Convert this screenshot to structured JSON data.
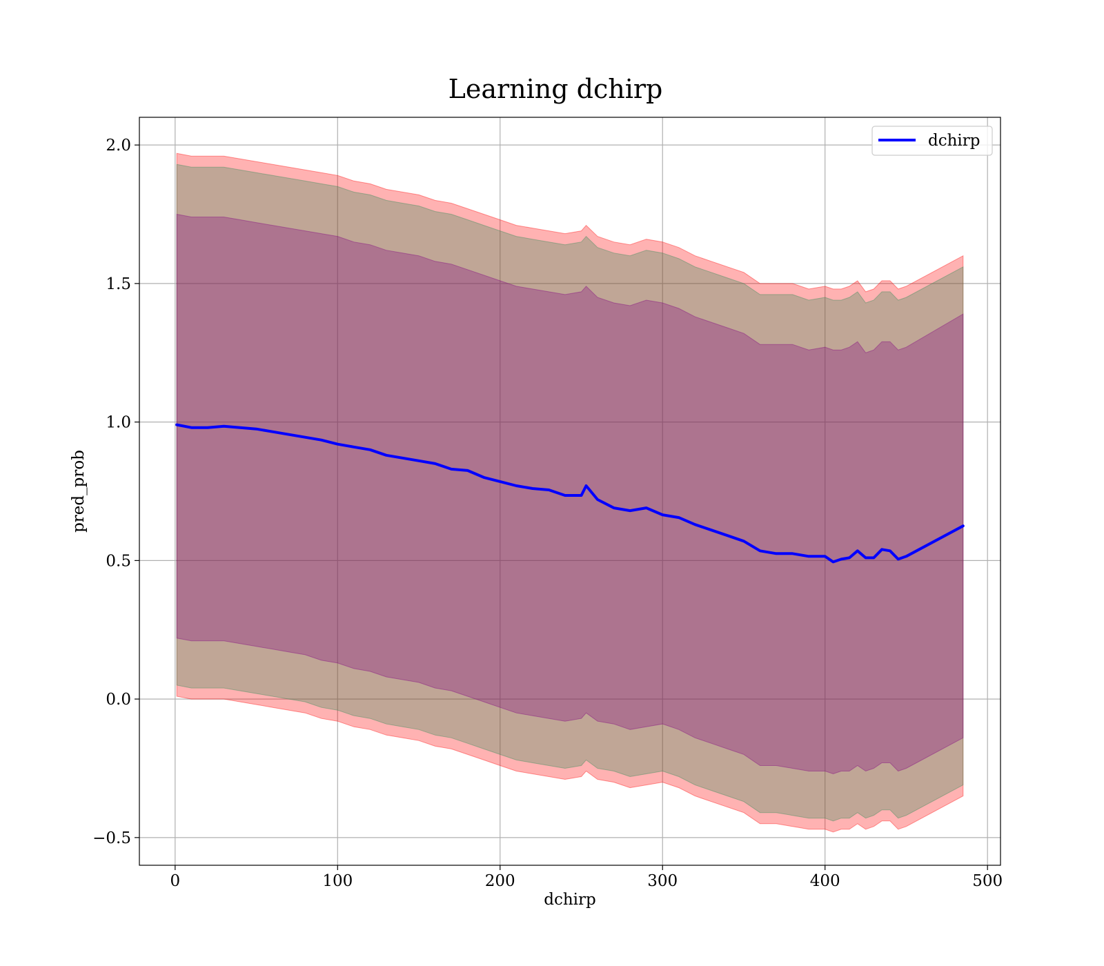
{
  "chart_data": {
    "type": "line",
    "title": "Learning dchirp",
    "xlabel": "dchirp",
    "ylabel": "pred_prob",
    "xlim": [
      -22,
      508
    ],
    "ylim": [
      -0.6,
      2.1
    ],
    "xticks": [
      0,
      100,
      200,
      300,
      400,
      500
    ],
    "xtick_labels": [
      "0",
      "100",
      "200",
      "300",
      "400",
      "500"
    ],
    "yticks": [
      -0.5,
      0.0,
      0.5,
      1.0,
      1.5,
      2.0
    ],
    "ytick_labels": [
      "−0.5",
      "0.0",
      "0.5",
      "1.0",
      "1.5",
      "2.0"
    ],
    "grid": true,
    "legend": {
      "position": "top-right",
      "entries": [
        "dchirp"
      ]
    },
    "series": [
      {
        "name": "dchirp",
        "color": "#0000ff",
        "x": [
          1,
          10,
          20,
          30,
          40,
          50,
          60,
          70,
          80,
          90,
          100,
          110,
          120,
          130,
          140,
          150,
          160,
          170,
          180,
          190,
          200,
          210,
          220,
          230,
          240,
          250,
          253,
          260,
          270,
          280,
          290,
          300,
          310,
          320,
          330,
          340,
          350,
          360,
          370,
          380,
          390,
          400,
          405,
          410,
          415,
          420,
          425,
          430,
          435,
          440,
          445,
          450,
          485
        ],
        "y": [
          0.99,
          0.98,
          0.98,
          0.985,
          0.98,
          0.975,
          0.965,
          0.955,
          0.945,
          0.935,
          0.92,
          0.91,
          0.9,
          0.88,
          0.87,
          0.86,
          0.85,
          0.83,
          0.825,
          0.8,
          0.785,
          0.77,
          0.76,
          0.755,
          0.735,
          0.735,
          0.77,
          0.72,
          0.69,
          0.68,
          0.69,
          0.665,
          0.655,
          0.63,
          0.61,
          0.59,
          0.57,
          0.535,
          0.525,
          0.525,
          0.515,
          0.515,
          0.495,
          0.505,
          0.51,
          0.535,
          0.51,
          0.51,
          0.54,
          0.535,
          0.505,
          0.515,
          0.625
        ]
      }
    ],
    "bands": [
      {
        "fill": "#ff0000",
        "opacity": 0.3,
        "upper": [
          1.97,
          1.96,
          1.96,
          1.96,
          1.95,
          1.94,
          1.93,
          1.92,
          1.91,
          1.9,
          1.89,
          1.87,
          1.86,
          1.84,
          1.83,
          1.82,
          1.8,
          1.79,
          1.77,
          1.75,
          1.73,
          1.71,
          1.7,
          1.69,
          1.68,
          1.69,
          1.71,
          1.67,
          1.65,
          1.64,
          1.66,
          1.65,
          1.63,
          1.6,
          1.58,
          1.56,
          1.54,
          1.5,
          1.5,
          1.5,
          1.48,
          1.49,
          1.48,
          1.48,
          1.49,
          1.51,
          1.47,
          1.48,
          1.51,
          1.51,
          1.48,
          1.49,
          1.6
        ],
        "lower": [
          0.01,
          0.0,
          0.0,
          0.0,
          -0.01,
          -0.02,
          -0.03,
          -0.04,
          -0.05,
          -0.07,
          -0.08,
          -0.1,
          -0.11,
          -0.13,
          -0.14,
          -0.15,
          -0.17,
          -0.18,
          -0.2,
          -0.22,
          -0.24,
          -0.26,
          -0.27,
          -0.28,
          -0.29,
          -0.28,
          -0.26,
          -0.29,
          -0.3,
          -0.32,
          -0.31,
          -0.3,
          -0.32,
          -0.35,
          -0.37,
          -0.39,
          -0.41,
          -0.45,
          -0.45,
          -0.46,
          -0.47,
          -0.47,
          -0.48,
          -0.47,
          -0.47,
          -0.45,
          -0.47,
          -0.46,
          -0.44,
          -0.44,
          -0.47,
          -0.46,
          -0.35
        ]
      },
      {
        "fill": "#2e8b57",
        "opacity": 0.3,
        "upper": [
          1.93,
          1.92,
          1.92,
          1.92,
          1.91,
          1.9,
          1.89,
          1.88,
          1.87,
          1.86,
          1.85,
          1.83,
          1.82,
          1.8,
          1.79,
          1.78,
          1.76,
          1.75,
          1.73,
          1.71,
          1.69,
          1.67,
          1.66,
          1.65,
          1.64,
          1.65,
          1.67,
          1.63,
          1.61,
          1.6,
          1.62,
          1.61,
          1.59,
          1.56,
          1.54,
          1.52,
          1.5,
          1.46,
          1.46,
          1.46,
          1.44,
          1.45,
          1.44,
          1.44,
          1.45,
          1.47,
          1.43,
          1.44,
          1.47,
          1.47,
          1.44,
          1.45,
          1.56
        ],
        "lower": [
          0.05,
          0.04,
          0.04,
          0.04,
          0.03,
          0.02,
          0.01,
          0.0,
          -0.01,
          -0.03,
          -0.04,
          -0.06,
          -0.07,
          -0.09,
          -0.1,
          -0.11,
          -0.13,
          -0.14,
          -0.16,
          -0.18,
          -0.2,
          -0.22,
          -0.23,
          -0.24,
          -0.25,
          -0.24,
          -0.22,
          -0.25,
          -0.26,
          -0.28,
          -0.27,
          -0.26,
          -0.28,
          -0.31,
          -0.33,
          -0.35,
          -0.37,
          -0.41,
          -0.41,
          -0.42,
          -0.43,
          -0.43,
          -0.44,
          -0.43,
          -0.43,
          -0.41,
          -0.43,
          -0.42,
          -0.4,
          -0.4,
          -0.43,
          -0.42,
          -0.31
        ]
      },
      {
        "fill": "#800080",
        "opacity": 0.3,
        "upper": [
          1.75,
          1.74,
          1.74,
          1.74,
          1.73,
          1.72,
          1.71,
          1.7,
          1.69,
          1.68,
          1.67,
          1.65,
          1.64,
          1.62,
          1.61,
          1.6,
          1.58,
          1.57,
          1.55,
          1.53,
          1.51,
          1.49,
          1.48,
          1.47,
          1.46,
          1.47,
          1.49,
          1.45,
          1.43,
          1.42,
          1.44,
          1.43,
          1.41,
          1.38,
          1.36,
          1.34,
          1.32,
          1.28,
          1.28,
          1.28,
          1.26,
          1.27,
          1.26,
          1.26,
          1.27,
          1.29,
          1.25,
          1.26,
          1.29,
          1.29,
          1.26,
          1.27,
          1.39
        ],
        "lower": [
          0.22,
          0.21,
          0.21,
          0.21,
          0.2,
          0.19,
          0.18,
          0.17,
          0.16,
          0.14,
          0.13,
          0.11,
          0.1,
          0.08,
          0.07,
          0.06,
          0.04,
          0.03,
          0.01,
          -0.01,
          -0.03,
          -0.05,
          -0.06,
          -0.07,
          -0.08,
          -0.07,
          -0.05,
          -0.08,
          -0.09,
          -0.11,
          -0.1,
          -0.09,
          -0.11,
          -0.14,
          -0.16,
          -0.18,
          -0.2,
          -0.24,
          -0.24,
          -0.25,
          -0.26,
          -0.26,
          -0.27,
          -0.26,
          -0.26,
          -0.24,
          -0.26,
          -0.25,
          -0.23,
          -0.23,
          -0.26,
          -0.25,
          -0.14
        ]
      }
    ]
  }
}
